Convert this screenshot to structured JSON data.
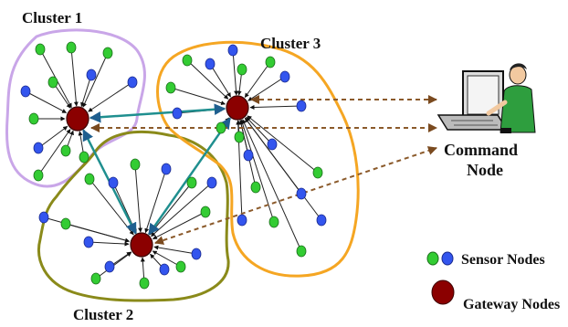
{
  "clusters": [
    {
      "label": "Cluster 1",
      "color": "#c9a6e8"
    },
    {
      "label": "Cluster 2",
      "color": "#8a8a1a"
    },
    {
      "label": "Cluster 3",
      "color": "#f5a623"
    }
  ],
  "command_node": {
    "label_line1": "Command",
    "label_line2": "Node"
  },
  "legend": {
    "sensor_label": "Sensor Nodes",
    "gateway_label": "Gateway Nodes"
  },
  "colors": {
    "gateway": "#8b0000",
    "sensor_green": "#33cc33",
    "sensor_blue": "#3355ee",
    "gateway_link": "#1f8f8f",
    "command_link": "#8b5a2b",
    "sensor_link": "#222222"
  },
  "icons": [
    "laptop-icon",
    "person-icon"
  ]
}
